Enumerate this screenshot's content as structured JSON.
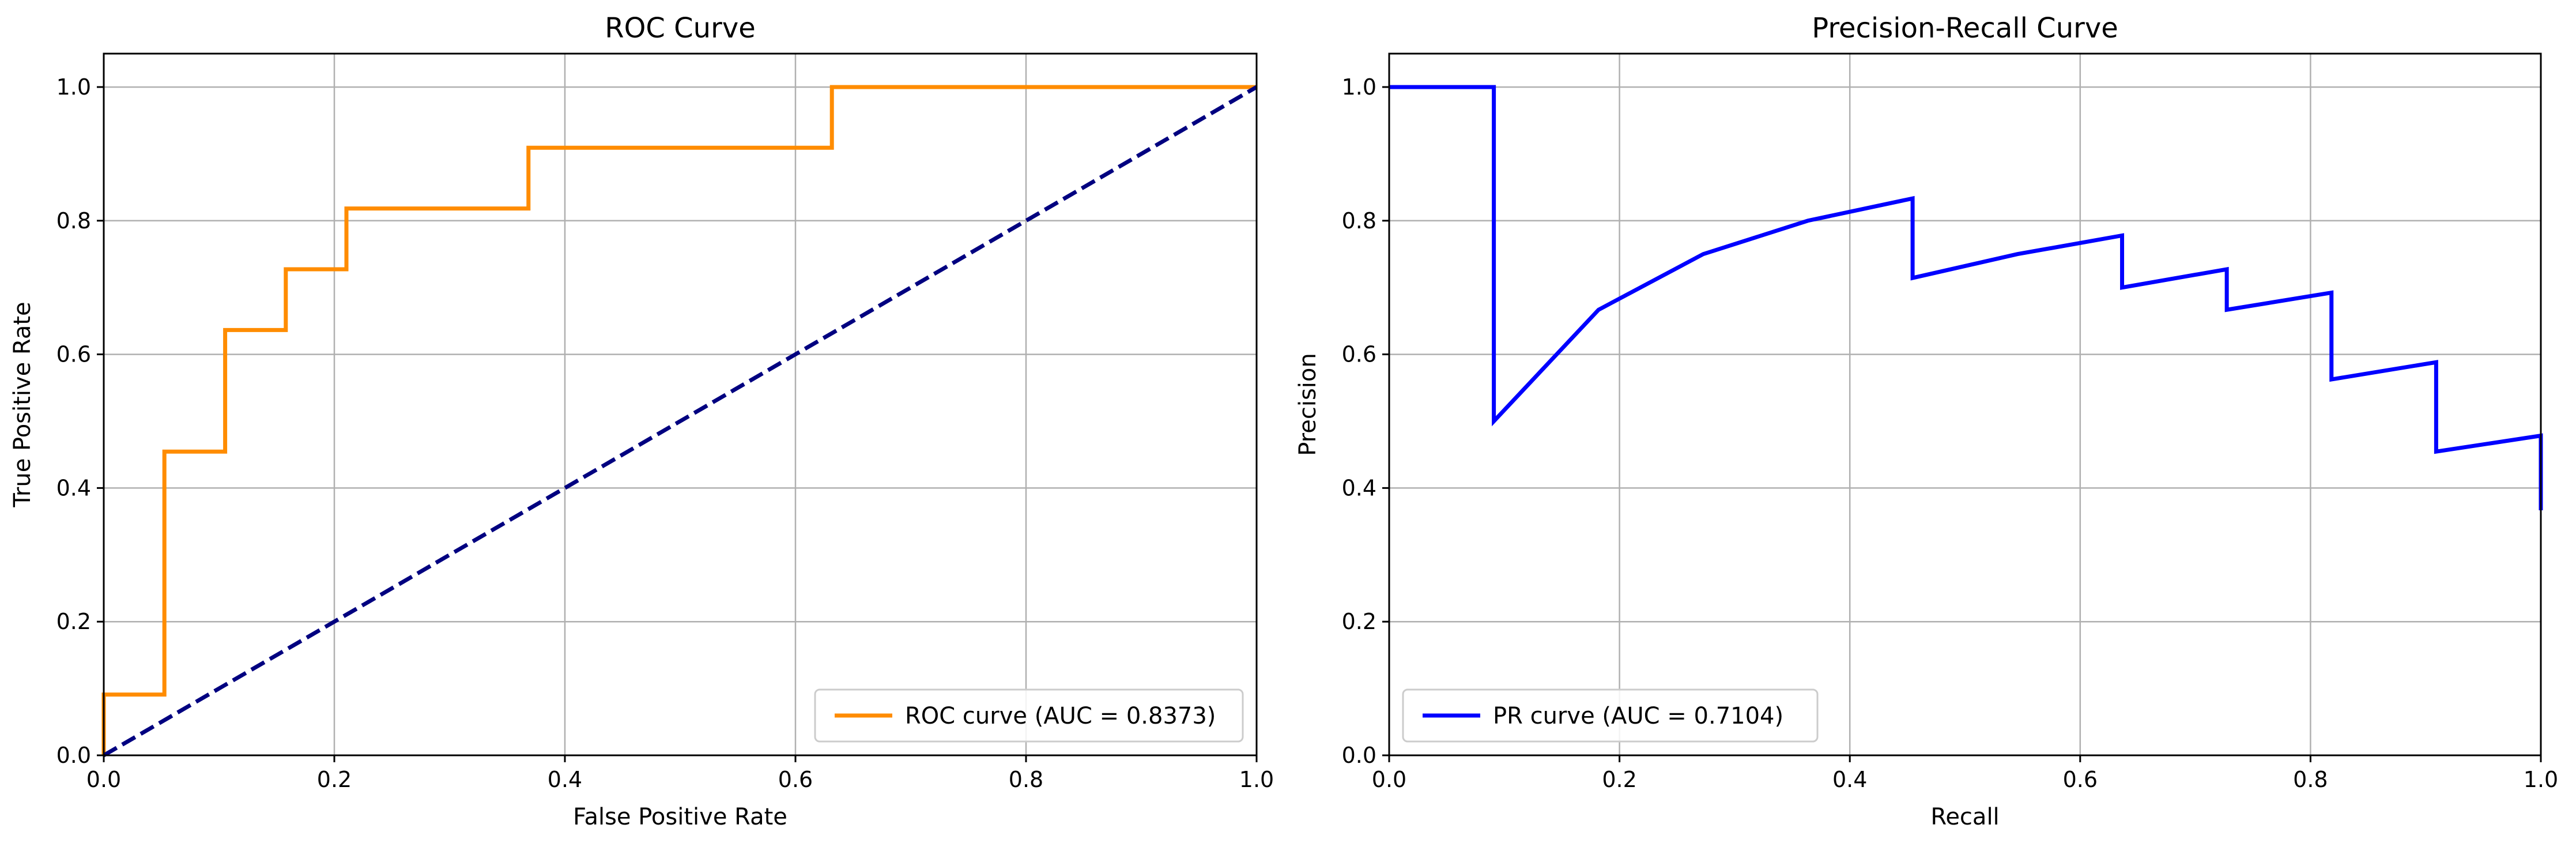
{
  "chart_data": [
    {
      "type": "line",
      "title": "ROC Curve",
      "xlabel": "False Positive Rate",
      "ylabel": "True Positive Rate",
      "xlim": [
        0,
        1
      ],
      "ylim": [
        0,
        1.05
      ],
      "xticks": [
        "0.0",
        "0.2",
        "0.4",
        "0.6",
        "0.8",
        "1.0"
      ],
      "yticks": [
        "0.0",
        "0.2",
        "0.4",
        "0.6",
        "0.8",
        "1.0"
      ],
      "grid": true,
      "legend_position": "lower-right",
      "series": [
        {
          "name": "ROC curve (AUC = 0.8373)",
          "color": "#ff8c00",
          "style": "solid",
          "x": [
            0,
            0,
            0.0526,
            0.0526,
            0.1053,
            0.1053,
            0.1579,
            0.1579,
            0.2105,
            0.2105,
            0.3684,
            0.3684,
            0.6316,
            0.6316,
            1.0
          ],
          "y": [
            0,
            0.0909,
            0.0909,
            0.4545,
            0.4545,
            0.6364,
            0.6364,
            0.7273,
            0.7273,
            0.8182,
            0.8182,
            0.9091,
            0.9091,
            1.0,
            1.0
          ]
        },
        {
          "color": "#000080",
          "style": "dashed",
          "x": [
            0,
            1
          ],
          "y": [
            0,
            1
          ]
        }
      ]
    },
    {
      "type": "line",
      "title": "Precision-Recall Curve",
      "xlabel": "Recall",
      "ylabel": "Precision",
      "xlim": [
        0,
        1
      ],
      "ylim": [
        0,
        1.05
      ],
      "xticks": [
        "0.0",
        "0.2",
        "0.4",
        "0.6",
        "0.8",
        "1.0"
      ],
      "yticks": [
        "0.0",
        "0.2",
        "0.4",
        "0.6",
        "0.8",
        "1.0"
      ],
      "grid": true,
      "legend_position": "lower-left",
      "series": [
        {
          "name": "PR curve (AUC = 0.7104)",
          "color": "#0000ff",
          "style": "solid",
          "x": [
            0,
            0.0909,
            0.0909,
            0.1818,
            0.2727,
            0.3636,
            0.4545,
            0.4545,
            0.5455,
            0.6364,
            0.6364,
            0.7273,
            0.7273,
            0.8182,
            0.8182,
            0.9091,
            0.9091,
            1.0,
            1.0
          ],
          "y": [
            1.0,
            1.0,
            0.5,
            0.6667,
            0.75,
            0.8,
            0.8333,
            0.7143,
            0.75,
            0.7778,
            0.7,
            0.7273,
            0.6667,
            0.6923,
            0.5625,
            0.5882,
            0.4545,
            0.4783,
            0.3667
          ]
        }
      ]
    }
  ]
}
